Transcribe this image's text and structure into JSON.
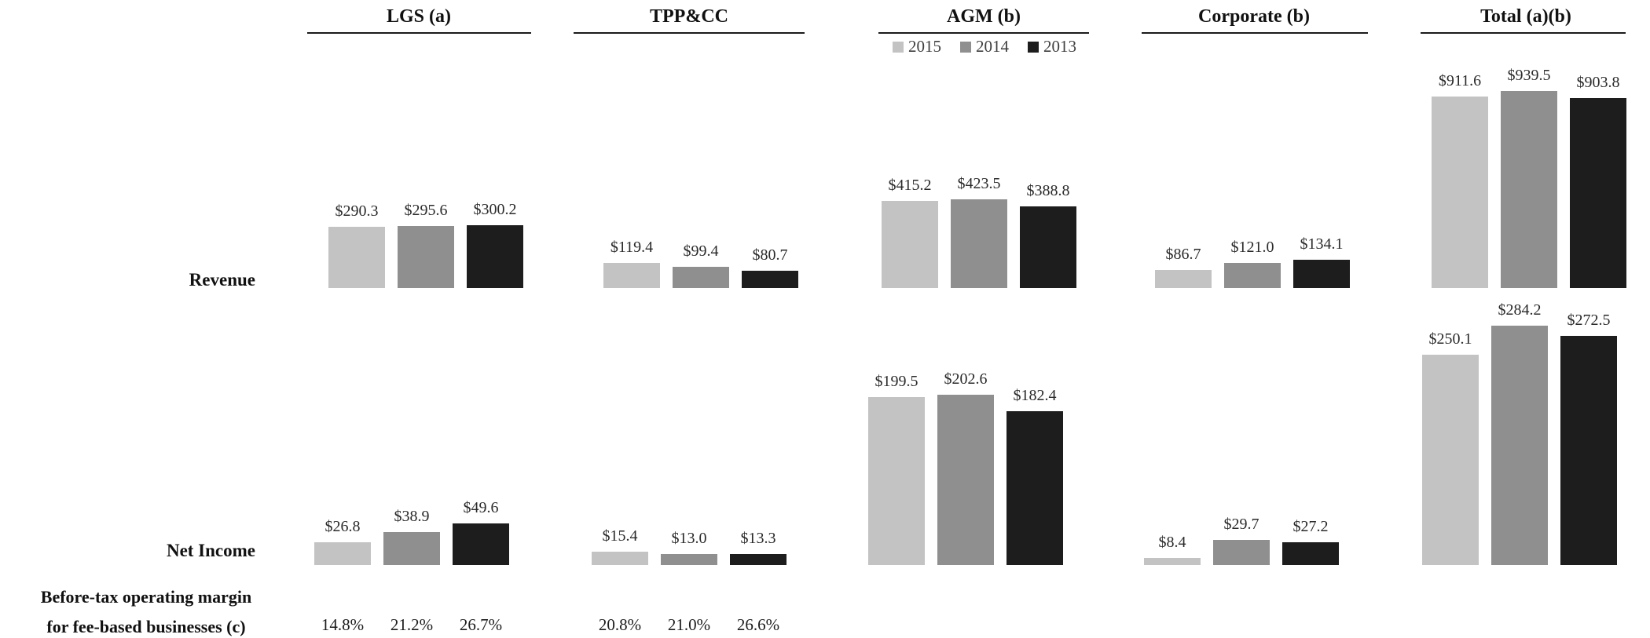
{
  "page": {
    "background": "#ffffff"
  },
  "legend": {
    "years": [
      {
        "label": "2015",
        "color": "#c3c3c3"
      },
      {
        "label": "2014",
        "color": "#8f8f8f"
      },
      {
        "label": "2013",
        "color": "#1d1d1d"
      }
    ]
  },
  "rows": {
    "revenue_label": "Revenue",
    "net_income_label": "Net Income",
    "margin_label_line1": "Before-tax operating margin",
    "margin_label_line2": "for fee-based businesses (c)"
  },
  "chart_data": {
    "type": "bar",
    "series_years": [
      "2015",
      "2014",
      "2013"
    ],
    "series_colors": [
      "#c3c3c3",
      "#8f8f8f",
      "#1d1d1d"
    ],
    "value_prefix": "$",
    "grid": false,
    "legend_position": "top, under AGM (b) header",
    "groups": [
      {
        "title": "LGS (a)",
        "revenue": [
          290.3,
          295.6,
          300.2
        ],
        "net_income": [
          26.8,
          38.9,
          49.6
        ],
        "margins": [
          "14.8%",
          "21.2%",
          "26.7%"
        ]
      },
      {
        "title": "TPP&CC",
        "revenue": [
          119.4,
          99.4,
          80.7
        ],
        "net_income": [
          15.4,
          13.0,
          13.3
        ],
        "margins": [
          "20.8%",
          "21.0%",
          "26.6%"
        ]
      },
      {
        "title": "AGM (b)",
        "revenue": [
          415.2,
          423.5,
          388.8
        ],
        "net_income": [
          199.5,
          202.6,
          182.4
        ],
        "margins": []
      },
      {
        "title": "Corporate (b)",
        "revenue": [
          86.7,
          121.0,
          134.1
        ],
        "net_income": [
          8.4,
          29.7,
          27.2
        ],
        "margins": []
      },
      {
        "title": "Total (a)(b)",
        "revenue": [
          911.6,
          939.5,
          903.8
        ],
        "net_income": [
          250.1,
          284.2,
          272.5
        ],
        "margins": []
      }
    ]
  }
}
